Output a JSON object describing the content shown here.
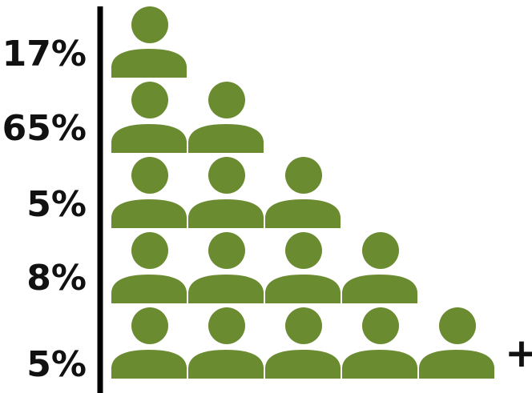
{
  "chart_data": {
    "type": "bar",
    "categories": [
      "1",
      "2",
      "3",
      "4",
      "5+"
    ],
    "category_icon": "person-icon",
    "values": [
      17,
      65,
      5,
      8,
      5
    ],
    "value_labels": [
      "17%",
      "65%",
      "5%",
      "8%",
      "5%"
    ],
    "overflow_marker": "+",
    "colors": {
      "icon": "#6b8b31",
      "axis": "#000000",
      "text": "#111111"
    }
  }
}
